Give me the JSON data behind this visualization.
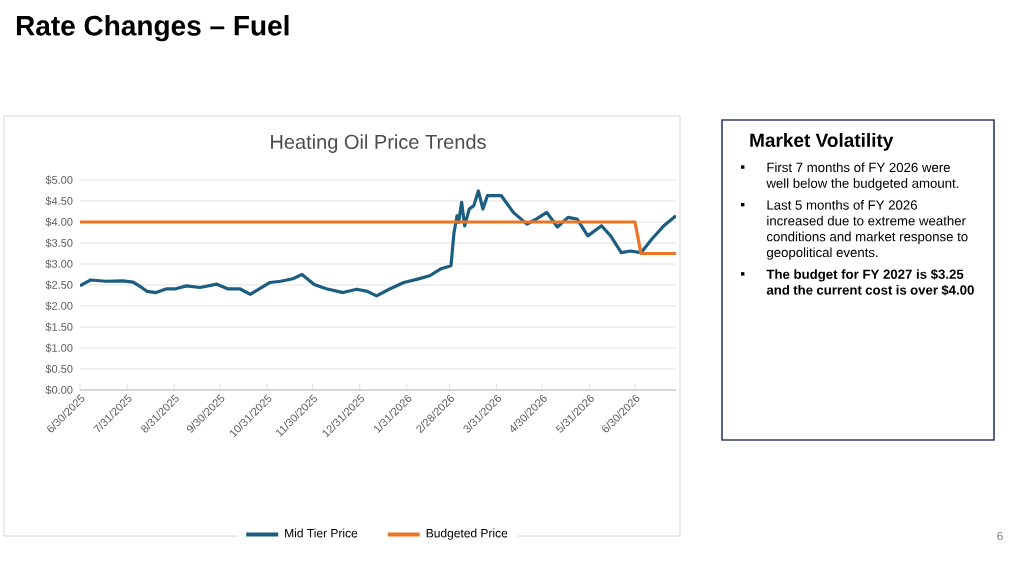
{
  "chart_data": {
    "type": "line",
    "title": "Heating Oil Price Trends",
    "annotations": [
      "Rate Changes – Fuel",
      "Market Volatility",
      "First 7 months of FY 2026 were well below the budgeted amount.",
      "Last 5 months of FY 2026 increased due to extreme weather conditions and market response to geopolitical events.",
      "The budget for FY 2027 is $3.25 and the current cost is over $4.00",
      "6"
    ],
    "series": [
      {
        "name": "Mid Tier Price",
        "color": "#1b5e82",
        "x": [
          "2025-06-30",
          "2025-07-07",
          "2025-07-17",
          "2025-07-28",
          "2025-08-04",
          "2025-08-10",
          "2025-08-13",
          "2025-08-19",
          "2025-08-26",
          "2025-09-01",
          "2025-09-08",
          "2025-09-17",
          "2025-09-28",
          "2025-10-05",
          "2025-10-13",
          "2025-10-20",
          "2025-10-27",
          "2025-11-02",
          "2025-11-09",
          "2025-11-17",
          "2025-11-23",
          "2025-12-01",
          "2025-12-09",
          "2025-12-20",
          "2025-12-29",
          "2026-01-05",
          "2026-01-11",
          "2026-01-20",
          "2026-01-29",
          "2026-02-07",
          "2026-02-15",
          "2026-02-22",
          "2026-03-01",
          "2026-03-03",
          "2026-03-05",
          "2026-03-06",
          "2026-03-08",
          "2026-03-10",
          "2026-03-13",
          "2026-03-16",
          "2026-03-19",
          "2026-03-22",
          "2026-03-25",
          "2026-04-03",
          "2026-04-11",
          "2026-04-20",
          "2026-04-26",
          "2026-05-03",
          "2026-05-10",
          "2026-05-17",
          "2026-05-23",
          "2026-05-30",
          "2026-06-08",
          "2026-06-14",
          "2026-06-21",
          "2026-06-27",
          "2026-07-04",
          "2026-07-11",
          "2026-07-19",
          "2026-07-27"
        ],
        "values": [
          2.48,
          2.62,
          2.59,
          2.6,
          2.57,
          2.43,
          2.35,
          2.32,
          2.41,
          2.41,
          2.48,
          2.44,
          2.52,
          2.41,
          2.41,
          2.28,
          2.43,
          2.56,
          2.59,
          2.65,
          2.75,
          2.51,
          2.41,
          2.32,
          2.4,
          2.35,
          2.24,
          2.41,
          2.56,
          2.64,
          2.72,
          2.88,
          2.96,
          3.75,
          4.15,
          3.99,
          4.47,
          3.91,
          4.31,
          4.39,
          4.74,
          4.31,
          4.63,
          4.63,
          4.23,
          3.95,
          4.07,
          4.23,
          3.88,
          4.11,
          4.07,
          3.67,
          3.91,
          3.67,
          3.27,
          3.31,
          3.27,
          3.59,
          3.91,
          4.15
        ]
      },
      {
        "name": "Budgeted Price",
        "color": "#ed7424",
        "x": [
          "2025-06-30",
          "2026-06-30",
          "2026-07-04",
          "2026-07-27"
        ],
        "values": [
          4.0,
          4.0,
          3.25,
          3.25
        ]
      }
    ],
    "xlim": [
      "2025-06-30",
      "2026-07-27"
    ],
    "xticks": [
      {
        "value": "2025-06-30",
        "label": "6/30/2025"
      },
      {
        "value": "2025-07-31",
        "label": "7/31/2025"
      },
      {
        "value": "2025-08-31",
        "label": "8/31/2025"
      },
      {
        "value": "2025-09-30",
        "label": "9/30/2025"
      },
      {
        "value": "2025-10-31",
        "label": "10/31/2025"
      },
      {
        "value": "2025-11-30",
        "label": "11/30/2025"
      },
      {
        "value": "2025-12-31",
        "label": "12/31/2025"
      },
      {
        "value": "2026-01-31",
        "label": "1/31/2026"
      },
      {
        "value": "2026-02-28",
        "label": "2/28/2026"
      },
      {
        "value": "2026-03-31",
        "label": "3/31/2026"
      },
      {
        "value": "2026-04-30",
        "label": "4/30/2026"
      },
      {
        "value": "2026-05-31",
        "label": "5/31/2026"
      },
      {
        "value": "2026-06-30",
        "label": "6/30/2026"
      }
    ],
    "ylim": [
      0,
      5
    ],
    "yticks": [
      {
        "value": 0,
        "label": "$0.00"
      },
      {
        "value": 0.5,
        "label": "$0.50"
      },
      {
        "value": 1,
        "label": "$1.00"
      },
      {
        "value": 1.5,
        "label": "$1.50"
      },
      {
        "value": 2,
        "label": "$2.00"
      },
      {
        "value": 2.5,
        "label": "$2.50"
      },
      {
        "value": 3,
        "label": "$3.00"
      },
      {
        "value": 3.5,
        "label": "$3.50"
      },
      {
        "value": 4,
        "label": "$4.00"
      },
      {
        "value": 4.5,
        "label": "$4.50"
      },
      {
        "value": 5,
        "label": "$5.00"
      }
    ],
    "grid": "y",
    "legend": "bottom",
    "marker": "none",
    "line_style": "solid"
  }
}
